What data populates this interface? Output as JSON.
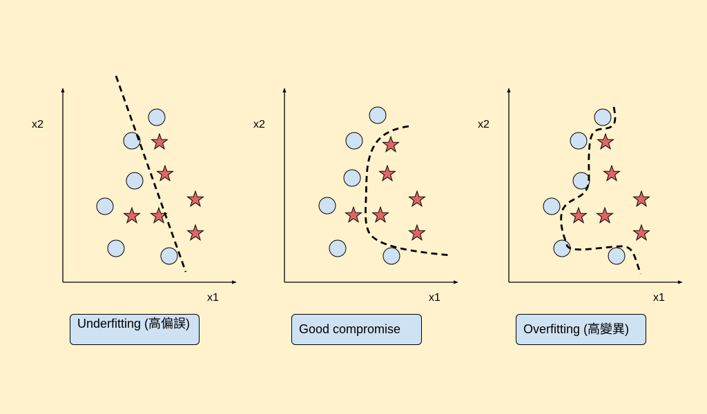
{
  "colors": {
    "background": "#fff2cc",
    "circle_fill": "#cfe2f3",
    "star_fill": "#e06666",
    "caption_fill": "#cfe2f3"
  },
  "panels": [
    {
      "x_label": "x1",
      "y_label": "x2",
      "caption": "Underfitting (高偏誤)"
    },
    {
      "x_label": "x1",
      "y_label": "x2",
      "caption": "Good compromise"
    },
    {
      "x_label": "x1",
      "y_label": "x2",
      "caption": "Overfitting (高變異)"
    }
  ]
}
